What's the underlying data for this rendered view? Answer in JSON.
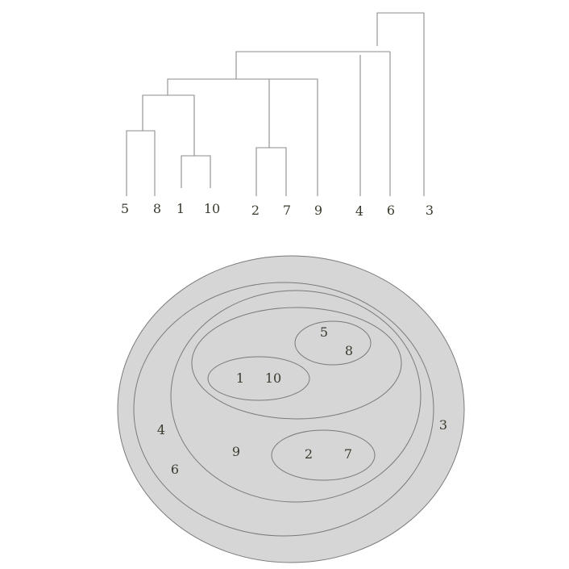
{
  "dendrogram": {
    "leaves": [
      "5",
      "8",
      "1",
      "10",
      "2",
      "7",
      "9",
      "4",
      "6",
      "3"
    ]
  },
  "euler": {
    "outer_labels": [
      "4",
      "6",
      "3"
    ],
    "middle_label": "9",
    "group_a": [
      "5",
      "8"
    ],
    "group_b": [
      "1",
      "10"
    ],
    "group_c": [
      "2",
      "7"
    ]
  }
}
